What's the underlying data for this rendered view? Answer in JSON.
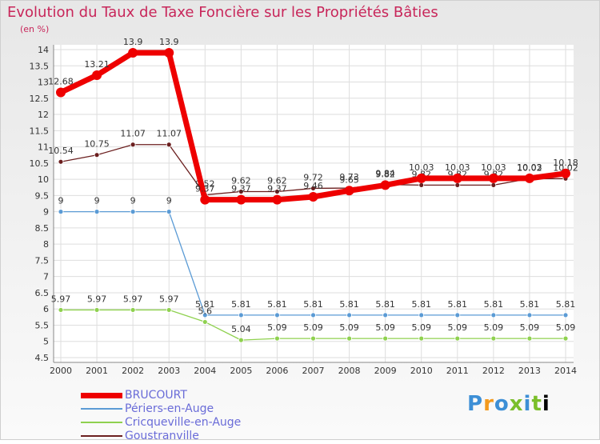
{
  "header": {
    "title": "Evolution du Taux de Taxe Foncière sur les Propriétés Bâties",
    "unit": "(en %)"
  },
  "logo": {
    "letters": [
      "P",
      "r",
      "o",
      "x",
      "i",
      "t",
      "i"
    ]
  },
  "chart_data": {
    "type": "line",
    "title": "Evolution du Taux de Taxe Foncière sur les Propriétés Bâties",
    "ylabel": "(en %)",
    "xlabel": "",
    "ylim": [
      4.5,
      14
    ],
    "ytick_step": 0.5,
    "grid": true,
    "legend": "bottom-left",
    "categories": [
      "2000",
      "2001",
      "2002",
      "2003",
      "2004",
      "2005",
      "2006",
      "2007",
      "2008",
      "2009",
      "2010",
      "2011",
      "2012",
      "2013",
      "2014"
    ],
    "series": [
      {
        "name": "BRUCOURT",
        "color": "#ee0000",
        "values": [
          12.68,
          13.21,
          13.9,
          13.9,
          9.37,
          9.37,
          9.37,
          9.46,
          9.65,
          9.82,
          10.03,
          10.03,
          10.03,
          10.03,
          10.18
        ],
        "labels": [
          "12.68",
          "13.21",
          "13.9",
          "13.9",
          "9.37",
          "9.37",
          "9.37",
          "9.46",
          "9.65",
          "9.82",
          "10.03",
          "10.03",
          "10.03",
          "10.03",
          "10.18"
        ]
      },
      {
        "name": "Périers-en-Auge",
        "color": "#5b9bd5",
        "values": [
          9,
          9,
          9,
          9,
          5.81,
          5.81,
          5.81,
          5.81,
          5.81,
          5.81,
          5.81,
          5.81,
          5.81,
          5.81,
          5.81
        ],
        "labels": [
          "9",
          "9",
          "9",
          "9",
          "5.81",
          "5.81",
          "5.81",
          "5.81",
          "5.81",
          "5.81",
          "5.81",
          "5.81",
          "5.81",
          "5.81",
          "5.81"
        ]
      },
      {
        "name": "Cricqueville-en-Auge",
        "color": "#8fd14f",
        "values": [
          5.97,
          5.97,
          5.97,
          5.97,
          5.6,
          5.04,
          5.09,
          5.09,
          5.09,
          5.09,
          5.09,
          5.09,
          5.09,
          5.09,
          5.09
        ],
        "labels": [
          "5.97",
          "5.97",
          "5.97",
          "5.97",
          "5.6",
          "5.04",
          "5.09",
          "5.09",
          "5.09",
          "5.09",
          "5.09",
          "5.09",
          "5.09",
          "5.09",
          "5.09"
        ]
      },
      {
        "name": "Goustranville",
        "color": "#6b1f1f",
        "values": [
          10.54,
          10.75,
          11.07,
          11.07,
          9.52,
          9.62,
          9.62,
          9.72,
          9.73,
          9.84,
          9.82,
          9.82,
          9.82,
          10.02,
          10.02
        ],
        "labels": [
          "10.54",
          "10.75",
          "11.07",
          "11.07",
          "9.52",
          "9.62",
          "9.62",
          "9.72",
          "9.73",
          "9.84",
          "9.82",
          "9.82",
          "9.82",
          "10.02",
          "10.02"
        ]
      }
    ]
  }
}
